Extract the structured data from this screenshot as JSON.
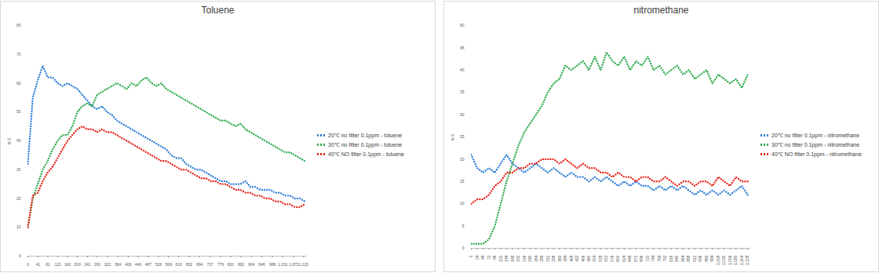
{
  "chart_data": [
    {
      "type": "line",
      "title": "Toluene",
      "y_label": "농도",
      "x": [
        0,
        20,
        40,
        60,
        80,
        100,
        120,
        140,
        160,
        180,
        200,
        220,
        240,
        260,
        280,
        300,
        320,
        340,
        360,
        380,
        400,
        420,
        440,
        460,
        480,
        500,
        520,
        540,
        560,
        580,
        600,
        620,
        640,
        660,
        680,
        700,
        720,
        740,
        760,
        780,
        800,
        820,
        840,
        860,
        880,
        900,
        920,
        940,
        960,
        980,
        1000,
        1020,
        1040,
        1060,
        1080,
        1100,
        1120
      ],
      "xlim": [
        0,
        1130
      ],
      "xticks": [
        0,
        41,
        81,
        121,
        160,
        200,
        241,
        281,
        322,
        364,
        406,
        446,
        487,
        528,
        569,
        610,
        652,
        694,
        737,
        779,
        820,
        862,
        904,
        946,
        989,
        {
          "value": 1031,
          "label": "1,031"
        },
        {
          "value": 1075,
          "label": "1,075"
        },
        {
          "value": 1115,
          "label": "1,115"
        }
      ],
      "ylim": [
        0,
        80
      ],
      "yticks": [
        0,
        10,
        20,
        30,
        40,
        50,
        60,
        70,
        80
      ],
      "grid": false,
      "legend": "right",
      "line_style": "dotted",
      "series": [
        {
          "name": "20℃ no filter 0.1ppm - toluene",
          "color": "#2f7ed8",
          "values": [
            32,
            55,
            61,
            66,
            62,
            62,
            60,
            59,
            60,
            59,
            58,
            56,
            54,
            52,
            51,
            52,
            50,
            49,
            47,
            46,
            45,
            44,
            43,
            42,
            41,
            40,
            39,
            38,
            37,
            35,
            34,
            34,
            32,
            31,
            30,
            30,
            29,
            28,
            27,
            26,
            26,
            25,
            25,
            25,
            26,
            24,
            24,
            23,
            23,
            23,
            22,
            22,
            21,
            21,
            20,
            20,
            19
          ]
        },
        {
          "name": "30℃ no filter 0.1ppm - toluene",
          "color": "#2eaa4f",
          "values": [
            10,
            20,
            25,
            30,
            33,
            37,
            40,
            42,
            42,
            45,
            50,
            52,
            53,
            52,
            56,
            57,
            58,
            59,
            60,
            59,
            58,
            60,
            59,
            61,
            62,
            60,
            59,
            60,
            58,
            57,
            56,
            55,
            54,
            53,
            52,
            51,
            50,
            49,
            48,
            47,
            47,
            46,
            45,
            46,
            44,
            43,
            42,
            41,
            40,
            39,
            38,
            37,
            36,
            36,
            35,
            34,
            33
          ]
        },
        {
          "name": "40℃ NO filter 0.1ppm - toluene",
          "color": "#e8261d",
          "values": [
            10,
            21,
            22,
            26,
            29,
            31,
            34,
            37,
            40,
            42,
            44,
            45,
            44,
            44,
            43,
            44,
            43,
            43,
            42,
            41,
            40,
            39,
            38,
            37,
            36,
            35,
            34,
            33,
            33,
            32,
            31,
            30,
            30,
            29,
            28,
            27,
            27,
            26,
            26,
            25,
            25,
            24,
            23,
            23,
            22,
            22,
            21,
            21,
            20,
            20,
            19,
            19,
            18,
            18,
            17,
            17,
            18
          ]
        }
      ]
    },
    {
      "type": "line",
      "title": "nitromethane",
      "y_label": "농도",
      "x": [
        0,
        24,
        48,
        72,
        96,
        120,
        144,
        168,
        192,
        216,
        240,
        264,
        288,
        312,
        336,
        360,
        384,
        408,
        432,
        456,
        480,
        504,
        528,
        552,
        576,
        600,
        624,
        648,
        672,
        696,
        720,
        744,
        768,
        792,
        816,
        840,
        864,
        888,
        912,
        936,
        960,
        984,
        1008,
        1032,
        1056,
        1080,
        1104,
        1128
      ],
      "xlim": [
        0,
        1140
      ],
      "xticks": [
        0,
        24,
        48,
        72,
        96,
        120,
        144,
        168,
        192,
        216,
        240,
        264,
        288,
        312,
        336,
        360,
        384,
        408,
        432,
        456,
        480,
        504,
        528,
        552,
        576,
        600,
        624,
        648,
        672,
        696,
        720,
        744,
        768,
        792,
        816,
        840,
        864,
        888,
        912,
        936,
        960,
        984,
        {
          "value": 1008,
          "label": "1,008"
        },
        {
          "value": 1032,
          "label": "1,032"
        },
        {
          "value": 1056,
          "label": "1,056"
        },
        {
          "value": 1080,
          "label": "1,080"
        },
        {
          "value": 1104,
          "label": "1,104"
        },
        {
          "value": 1128,
          "label": "1,128"
        }
      ],
      "ylim": [
        0,
        50
      ],
      "yticks": [
        0,
        5,
        10,
        15,
        20,
        25,
        30,
        35,
        40,
        45,
        50
      ],
      "grid": false,
      "legend": "right",
      "line_style": "dotted",
      "series": [
        {
          "name": "20℃ no filter 0.1ppm - nitromethane",
          "color": "#2f7ed8",
          "values": [
            21,
            18,
            17,
            18,
            17,
            19,
            21,
            19,
            18,
            17,
            18,
            19,
            18,
            17,
            18,
            17,
            16,
            17,
            16,
            16,
            15,
            16,
            15,
            16,
            15,
            14,
            15,
            14,
            15,
            14,
            14,
            13,
            14,
            13,
            14,
            13,
            14,
            13,
            12,
            13,
            12,
            13,
            12,
            13,
            12,
            13,
            14,
            12
          ]
        },
        {
          "name": "30℃ no filter 0.1ppm - nitromethane",
          "color": "#2eaa4f",
          "values": [
            1,
            1,
            1,
            2,
            5,
            10,
            15,
            19,
            23,
            26,
            28,
            30,
            32,
            35,
            37,
            38,
            41,
            40,
            41,
            42,
            40,
            43,
            40,
            44,
            42,
            41,
            43,
            40,
            42,
            41,
            43,
            40,
            41,
            39,
            40,
            41,
            39,
            40,
            38,
            39,
            40,
            37,
            39,
            38,
            37,
            38,
            36,
            39
          ]
        },
        {
          "name": "40℃ NO filter 0.1ppm - nitromethane",
          "color": "#e8261d",
          "values": [
            10,
            11,
            11,
            12,
            14,
            15,
            17,
            17,
            18,
            18,
            19,
            19,
            20,
            20,
            20,
            19,
            20,
            19,
            18,
            19,
            18,
            18,
            17,
            17,
            16,
            17,
            16,
            16,
            15,
            16,
            16,
            15,
            15,
            16,
            15,
            14,
            15,
            15,
            14,
            15,
            15,
            14,
            16,
            15,
            14,
            16,
            15,
            15
          ]
        }
      ]
    }
  ]
}
